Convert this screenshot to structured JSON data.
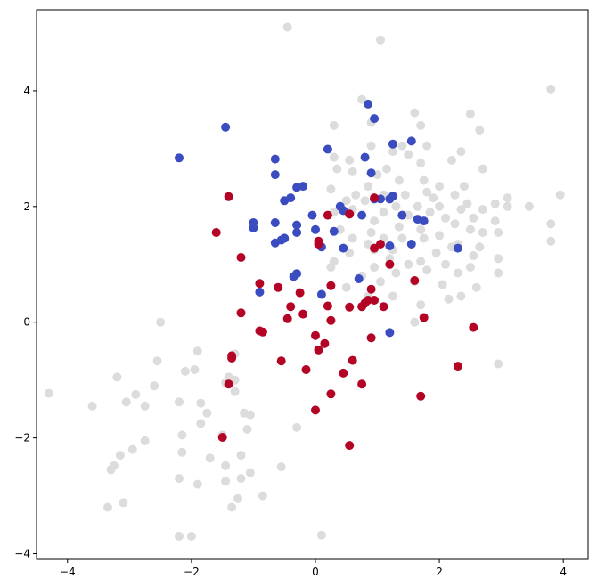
{
  "chart_data": {
    "type": "scatter",
    "title": "",
    "xlabel": "",
    "ylabel": "",
    "xlim": [
      -4.5,
      4.4
    ],
    "ylim": [
      -4.1,
      5.4
    ],
    "xticks": [
      -4,
      -2,
      0,
      2,
      4
    ],
    "xtick_labels": [
      "−4",
      "−2",
      "0",
      "2",
      "4"
    ],
    "yticks": [
      -4,
      -2,
      0,
      2,
      4
    ],
    "ytick_labels": [
      "−4",
      "−2",
      "0",
      "2",
      "4"
    ],
    "grid": false,
    "legend": null,
    "series": [
      {
        "color": "#dcdcdc",
        "points": [
          [
            -0.45,
            5.1
          ],
          [
            1.05,
            4.88
          ],
          [
            3.8,
            4.03
          ],
          [
            0.75,
            3.85
          ],
          [
            1.6,
            3.62
          ],
          [
            2.5,
            3.6
          ],
          [
            0.9,
            3.45
          ],
          [
            1.7,
            3.4
          ],
          [
            0.3,
            3.4
          ],
          [
            2.65,
            3.32
          ],
          [
            1.4,
            3.05
          ],
          [
            1.8,
            3.05
          ],
          [
            0.9,
            3.05
          ],
          [
            2.35,
            2.95
          ],
          [
            0.3,
            2.85
          ],
          [
            1.25,
            2.95
          ],
          [
            1.5,
            2.9
          ],
          [
            0.55,
            2.8
          ],
          [
            1.7,
            2.75
          ],
          [
            2.2,
            2.8
          ],
          [
            1.15,
            2.65
          ],
          [
            0.35,
            2.65
          ],
          [
            0.6,
            2.6
          ],
          [
            1.0,
            2.55
          ],
          [
            2.7,
            2.65
          ],
          [
            1.75,
            2.45
          ],
          [
            1.35,
            2.45
          ],
          [
            0.85,
            2.35
          ],
          [
            2.0,
            2.35
          ],
          [
            2.4,
            2.35
          ],
          [
            1.8,
            2.25
          ],
          [
            0.25,
            2.3
          ],
          [
            0.65,
            2.2
          ],
          [
            1.1,
            2.2
          ],
          [
            1.45,
            2.2
          ],
          [
            1.9,
            2.15
          ],
          [
            2.25,
            2.2
          ],
          [
            3.95,
            2.2
          ],
          [
            3.1,
            2.15
          ],
          [
            0.5,
            2.1
          ],
          [
            0.8,
            2.1
          ],
          [
            2.45,
            2.05
          ],
          [
            2.9,
            2.05
          ],
          [
            1.3,
            2.0
          ],
          [
            1.65,
            2.0
          ],
          [
            2.0,
            2.0
          ],
          [
            3.1,
            2.0
          ],
          [
            2.7,
            1.95
          ],
          [
            3.45,
            2.0
          ],
          [
            0.6,
            1.95
          ],
          [
            2.35,
            1.95
          ],
          [
            0.3,
            1.9
          ],
          [
            1.1,
            1.9
          ],
          [
            1.85,
            1.9
          ],
          [
            1.5,
            1.85
          ],
          [
            2.1,
            1.8
          ],
          [
            2.55,
            1.8
          ],
          [
            2.9,
            1.75
          ],
          [
            0.95,
            1.75
          ],
          [
            3.8,
            1.7
          ],
          [
            2.25,
            1.7
          ],
          [
            1.35,
            1.65
          ],
          [
            1.7,
            1.6
          ],
          [
            0.4,
            1.6
          ],
          [
            2.5,
            1.6
          ],
          [
            0.9,
            1.55
          ],
          [
            2.95,
            1.55
          ],
          [
            2.0,
            1.5
          ],
          [
            2.7,
            1.55
          ],
          [
            1.1,
            1.45
          ],
          [
            1.4,
            1.45
          ],
          [
            1.75,
            1.45
          ],
          [
            0.6,
            1.45
          ],
          [
            2.3,
            1.35
          ],
          [
            3.8,
            1.4
          ],
          [
            0.85,
            1.35
          ],
          [
            1.55,
            1.35
          ],
          [
            2.2,
            1.3
          ],
          [
            2.65,
            1.3
          ],
          [
            1.25,
            1.25
          ],
          [
            0.95,
            1.25
          ],
          [
            1.95,
            1.2
          ],
          [
            0.55,
            1.2
          ],
          [
            2.55,
            1.15
          ],
          [
            2.95,
            1.1
          ],
          [
            1.2,
            1.1
          ],
          [
            1.7,
            1.05
          ],
          [
            0.3,
            1.05
          ],
          [
            2.1,
            1.0
          ],
          [
            1.5,
            1.0
          ],
          [
            0.95,
            0.95
          ],
          [
            2.5,
            0.95
          ],
          [
            1.8,
            0.9
          ],
          [
            0.25,
            0.95
          ],
          [
            1.3,
            0.85
          ],
          [
            2.3,
            0.85
          ],
          [
            0.75,
            0.8
          ],
          [
            2.95,
            0.85
          ],
          [
            1.05,
            0.7
          ],
          [
            1.6,
            0.7
          ],
          [
            2.05,
            0.65
          ],
          [
            2.6,
            0.6
          ],
          [
            0.5,
            0.6
          ],
          [
            0.85,
            0.45
          ],
          [
            1.25,
            0.45
          ],
          [
            2.15,
            0.4
          ],
          [
            1.7,
            0.3
          ],
          [
            2.35,
            0.45
          ],
          [
            1.6,
            0.0
          ],
          [
            -2.5,
            0.0
          ],
          [
            -1.9,
            -0.5
          ],
          [
            -2.55,
            -0.67
          ],
          [
            2.95,
            -0.72
          ],
          [
            -4.3,
            -1.23
          ],
          [
            -3.2,
            -0.95
          ],
          [
            -2.1,
            -0.85
          ],
          [
            -1.95,
            -0.82
          ],
          [
            -1.4,
            -0.95
          ],
          [
            -1.3,
            -1.0
          ],
          [
            -2.6,
            -1.1
          ],
          [
            -3.05,
            -1.38
          ],
          [
            -2.9,
            -1.25
          ],
          [
            -2.2,
            -1.38
          ],
          [
            -1.85,
            -1.4
          ],
          [
            -1.45,
            -1.05
          ],
          [
            -1.3,
            -1.2
          ],
          [
            -2.75,
            -1.45
          ],
          [
            -3.6,
            -1.45
          ],
          [
            -1.75,
            -1.57
          ],
          [
            -1.15,
            -1.57
          ],
          [
            -1.05,
            -1.6
          ],
          [
            -1.85,
            -1.75
          ],
          [
            -1.5,
            -1.95
          ],
          [
            -2.15,
            -1.95
          ],
          [
            -1.1,
            -1.85
          ],
          [
            -2.75,
            -2.05
          ],
          [
            -2.95,
            -2.2
          ],
          [
            -2.15,
            -2.25
          ],
          [
            -1.7,
            -2.35
          ],
          [
            -1.2,
            -2.3
          ],
          [
            -1.45,
            -2.48
          ],
          [
            -3.25,
            -2.48
          ],
          [
            -3.15,
            -2.3
          ],
          [
            -3.3,
            -2.55
          ],
          [
            -1.05,
            -2.6
          ],
          [
            -0.55,
            -2.5
          ],
          [
            -1.9,
            -2.8
          ],
          [
            -2.2,
            -2.7
          ],
          [
            -1.45,
            -2.75
          ],
          [
            -1.2,
            -2.7
          ],
          [
            -0.85,
            -3.0
          ],
          [
            -1.25,
            -3.05
          ],
          [
            -3.1,
            -3.12
          ],
          [
            -3.35,
            -3.2
          ],
          [
            -1.35,
            -3.2
          ],
          [
            -2.2,
            -3.7
          ],
          [
            -2.0,
            -3.7
          ],
          [
            0.1,
            -3.68
          ],
          [
            -0.3,
            -1.82
          ],
          [
            -1.3,
            -0.55
          ]
        ]
      },
      {
        "color": "#3b4cc0",
        "points": [
          [
            0.85,
            3.77
          ],
          [
            0.95,
            3.52
          ],
          [
            -1.45,
            3.37
          ],
          [
            1.55,
            3.13
          ],
          [
            1.25,
            3.08
          ],
          [
            0.2,
            2.99
          ],
          [
            -2.2,
            2.84
          ],
          [
            -0.65,
            2.82
          ],
          [
            0.8,
            2.85
          ],
          [
            0.9,
            2.58
          ],
          [
            -0.65,
            2.55
          ],
          [
            -0.2,
            2.35
          ],
          [
            -0.3,
            2.33
          ],
          [
            1.25,
            2.18
          ],
          [
            1.2,
            2.13
          ],
          [
            -0.4,
            2.15
          ],
          [
            -0.5,
            2.1
          ],
          [
            0.95,
            2.13
          ],
          [
            1.05,
            2.13
          ],
          [
            0.4,
            2.0
          ],
          [
            0.45,
            1.93
          ],
          [
            0.55,
            1.87
          ],
          [
            1.4,
            1.85
          ],
          [
            -0.05,
            1.85
          ],
          [
            0.75,
            1.85
          ],
          [
            1.65,
            1.78
          ],
          [
            1.75,
            1.75
          ],
          [
            -1.0,
            1.72
          ],
          [
            -0.65,
            1.72
          ],
          [
            -0.3,
            1.68
          ],
          [
            -1.0,
            1.63
          ],
          [
            0.3,
            1.57
          ],
          [
            -0.3,
            1.55
          ],
          [
            0.0,
            1.6
          ],
          [
            -0.5,
            1.45
          ],
          [
            -0.55,
            1.42
          ],
          [
            -0.65,
            1.37
          ],
          [
            0.1,
            1.3
          ],
          [
            0.45,
            1.28
          ],
          [
            1.2,
            1.32
          ],
          [
            1.55,
            1.35
          ],
          [
            2.3,
            1.28
          ],
          [
            -0.3,
            0.84
          ],
          [
            -0.35,
            0.79
          ],
          [
            0.7,
            0.75
          ],
          [
            -0.9,
            0.52
          ],
          [
            0.1,
            0.48
          ],
          [
            1.2,
            -0.18
          ],
          [
            -0.5,
            1.45
          ]
        ]
      },
      {
        "color": "#b40426",
        "points": [
          [
            0.95,
            2.15
          ],
          [
            -1.4,
            2.17
          ],
          [
            0.2,
            1.85
          ],
          [
            0.55,
            1.87
          ],
          [
            -1.6,
            1.55
          ],
          [
            0.05,
            1.4
          ],
          [
            0.05,
            1.35
          ],
          [
            1.05,
            1.35
          ],
          [
            0.95,
            1.28
          ],
          [
            -1.2,
            1.12
          ],
          [
            1.2,
            1.0
          ],
          [
            1.6,
            0.72
          ],
          [
            -0.9,
            0.67
          ],
          [
            0.25,
            0.63
          ],
          [
            -0.6,
            0.6
          ],
          [
            0.9,
            0.57
          ],
          [
            -0.25,
            0.51
          ],
          [
            0.85,
            0.38
          ],
          [
            0.95,
            0.38
          ],
          [
            0.8,
            0.33
          ],
          [
            -0.4,
            0.27
          ],
          [
            0.75,
            0.27
          ],
          [
            0.2,
            0.28
          ],
          [
            0.55,
            0.26
          ],
          [
            1.1,
            0.27
          ],
          [
            -1.2,
            0.16
          ],
          [
            -0.2,
            0.14
          ],
          [
            -0.45,
            0.06
          ],
          [
            0.25,
            0.03
          ],
          [
            1.75,
            0.08
          ],
          [
            -0.85,
            -0.17
          ],
          [
            -0.9,
            -0.15
          ],
          [
            2.55,
            -0.09
          ],
          [
            0.0,
            -0.23
          ],
          [
            0.9,
            -0.27
          ],
          [
            0.15,
            -0.37
          ],
          [
            0.05,
            -0.48
          ],
          [
            -1.35,
            -0.58
          ],
          [
            -1.35,
            -0.62
          ],
          [
            0.6,
            -0.66
          ],
          [
            -0.55,
            -0.67
          ],
          [
            -0.15,
            -0.82
          ],
          [
            0.45,
            -0.88
          ],
          [
            2.3,
            -0.76
          ],
          [
            -1.4,
            -1.07
          ],
          [
            0.75,
            -1.07
          ],
          [
            0.25,
            -1.24
          ],
          [
            1.7,
            -1.28
          ],
          [
            0.0,
            -1.52
          ],
          [
            -1.5,
            -1.99
          ],
          [
            0.55,
            -2.13
          ]
        ]
      }
    ]
  }
}
